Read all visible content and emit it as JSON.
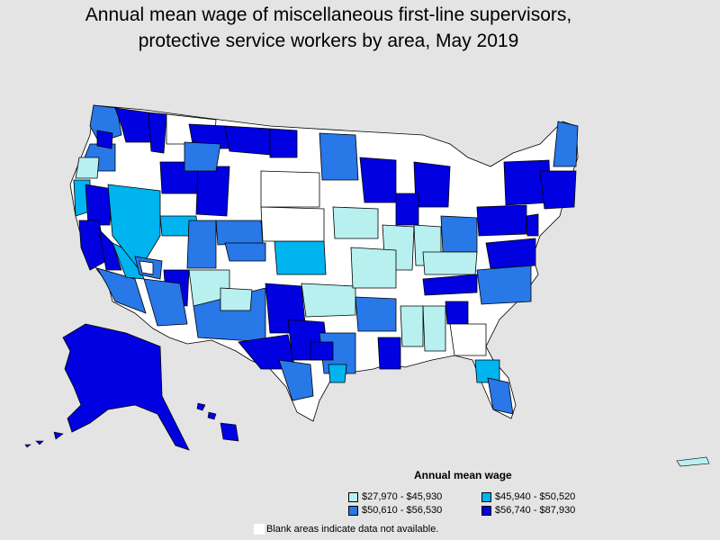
{
  "title_line1": "Annual mean wage of miscellaneous first-line supervisors,",
  "title_line2": "protective service workers by area, May 2019",
  "legend": {
    "title": "Annual mean wage",
    "items": [
      {
        "label": "$27,970 - $45,930",
        "color": "#b8f0f0"
      },
      {
        "label": "$45,940 - $50,520",
        "color": "#00b4f0"
      },
      {
        "label": "$50,610 - $56,530",
        "color": "#2878e8"
      },
      {
        "label": "$56,740 - $87,930",
        "color": "#0000e0"
      }
    ]
  },
  "footnote": "Blank areas indicate data not available.",
  "colors": {
    "background": "#e4e4e4",
    "no_data": "#ffffff",
    "border": "#000000"
  }
}
